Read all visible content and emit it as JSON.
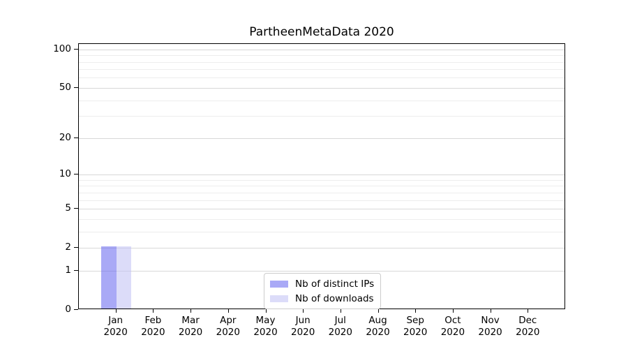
{
  "title": "PartheenMetaData 2020",
  "chart_data": {
    "type": "bar",
    "title": "PartheenMetaData 2020",
    "categories": [
      {
        "month": "Jan",
        "year": "2020"
      },
      {
        "month": "Feb",
        "year": "2020"
      },
      {
        "month": "Mar",
        "year": "2020"
      },
      {
        "month": "Apr",
        "year": "2020"
      },
      {
        "month": "May",
        "year": "2020"
      },
      {
        "month": "Jun",
        "year": "2020"
      },
      {
        "month": "Jul",
        "year": "2020"
      },
      {
        "month": "Aug",
        "year": "2020"
      },
      {
        "month": "Sep",
        "year": "2020"
      },
      {
        "month": "Oct",
        "year": "2020"
      },
      {
        "month": "Nov",
        "year": "2020"
      },
      {
        "month": "Dec",
        "year": "2020"
      }
    ],
    "series": [
      {
        "name": "Nb of distinct IPs",
        "legend_color": "#a9a9f6",
        "fill_rgba": "rgba(111,111,240,0.6)",
        "values": [
          2,
          0,
          0,
          0,
          0,
          0,
          0,
          0,
          0,
          0,
          0,
          0
        ]
      },
      {
        "name": "Nb of downloads",
        "legend_color": "#dcdcf9",
        "fill_rgba": "rgba(197,197,245,0.6)",
        "values": [
          2,
          0,
          0,
          0,
          0,
          0,
          0,
          0,
          0,
          0,
          0,
          0
        ]
      }
    ],
    "xlabel": "",
    "ylabel": "",
    "y_axis": {
      "scale": "log1p",
      "min": 0,
      "max": 110,
      "major_ticks": [
        0,
        1,
        2,
        5,
        10,
        20,
        50,
        100
      ],
      "minor_gridlines": [
        3,
        4,
        6,
        7,
        8,
        9,
        30,
        40,
        60,
        70,
        80,
        90
      ]
    },
    "grid": {
      "enabled": true,
      "major_color": "#d8d8d8",
      "minor_color": "#ededed"
    },
    "legend": {
      "position": "lower-center-inside"
    },
    "colors": {
      "axis": "#000000",
      "text": "#000000",
      "background": "#ffffff"
    }
  }
}
